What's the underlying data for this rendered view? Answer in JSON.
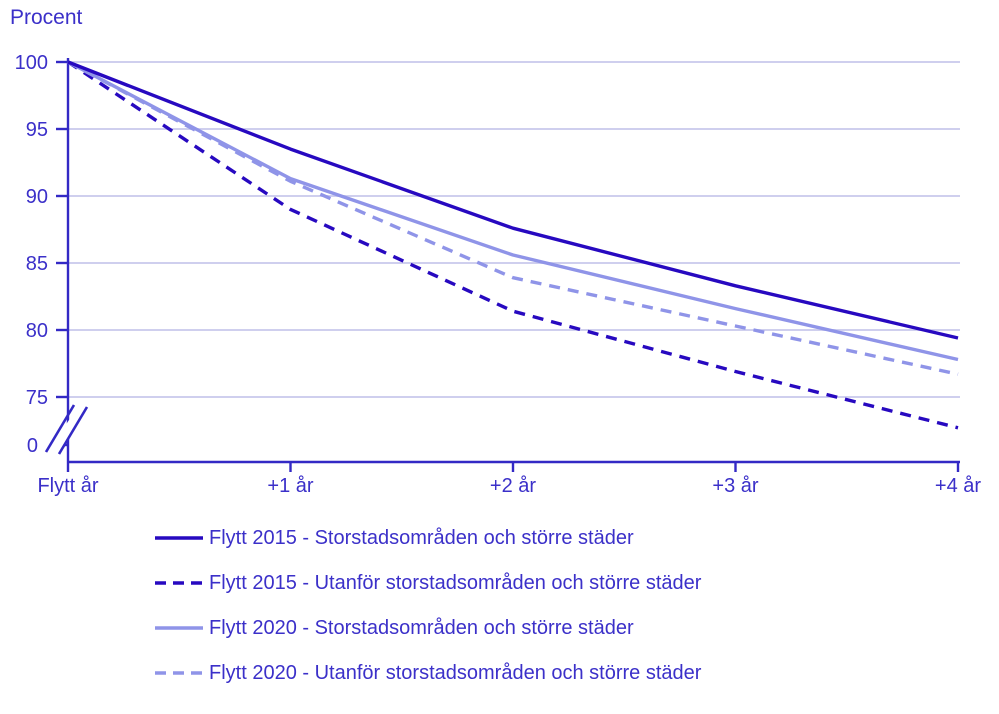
{
  "chart_data": {
    "type": "line",
    "ylabel": "Procent",
    "categories": [
      "Flytt år",
      "+1 år",
      "+2 år",
      "+3 år",
      "+4 år"
    ],
    "y_ticks": [
      100,
      95,
      90,
      85,
      80,
      75
    ],
    "y_break_label": "0",
    "y_axis_break": true,
    "ylim_main": [
      72,
      100
    ],
    "grid": "horizontal",
    "legend_position": "bottom-left",
    "series": [
      {
        "name": "Flytt 2015 - Storstadsområden och större städer",
        "style": "solid",
        "color": "#2709c0",
        "values": [
          100,
          93.5,
          87.6,
          83.3,
          79.4
        ]
      },
      {
        "name": "Flytt 2015 - Utanför storstadsområden och större städer",
        "style": "dashed",
        "color": "#2709c0",
        "values": [
          100,
          89.0,
          81.4,
          76.9,
          72.7
        ]
      },
      {
        "name": "Flytt 2020 - Storstadsområden och större städer",
        "style": "solid",
        "color": "#8f94e8",
        "values": [
          100,
          91.3,
          85.6,
          81.6,
          77.8
        ]
      },
      {
        "name": "Flytt 2020 - Utanför storstadsområden och större städer",
        "style": "dashed",
        "color": "#8f94e8",
        "values": [
          100,
          91.1,
          83.9,
          80.3,
          76.7
        ]
      }
    ]
  },
  "colors": {
    "series_dark": "#2709c0",
    "series_light": "#8f94e8",
    "text": "#3b30c9",
    "axis": "#3329c5",
    "gridline": "#cfcfee",
    "background": "#ffffff"
  }
}
